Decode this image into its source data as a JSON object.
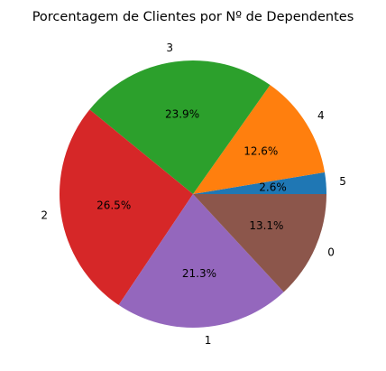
{
  "chart_data": {
    "type": "pie",
    "title": "Porcentagem de Clientes por Nº de Dependentes",
    "start_angle_deg": 0,
    "direction": "counterclockwise",
    "slices": [
      {
        "label": "5",
        "value": 2.6,
        "pct_label": "2.6%",
        "color": "#1f77b4"
      },
      {
        "label": "4",
        "value": 12.6,
        "pct_label": "12.6%",
        "color": "#ff7f0e"
      },
      {
        "label": "3",
        "value": 23.9,
        "pct_label": "23.9%",
        "color": "#2ca02c"
      },
      {
        "label": "2",
        "value": 26.5,
        "pct_label": "26.5%",
        "color": "#d62728"
      },
      {
        "label": "1",
        "value": 21.3,
        "pct_label": "21.3%",
        "color": "#9467bd"
      },
      {
        "label": "0",
        "value": 13.1,
        "pct_label": "13.1%",
        "color": "#8c564b"
      }
    ]
  }
}
